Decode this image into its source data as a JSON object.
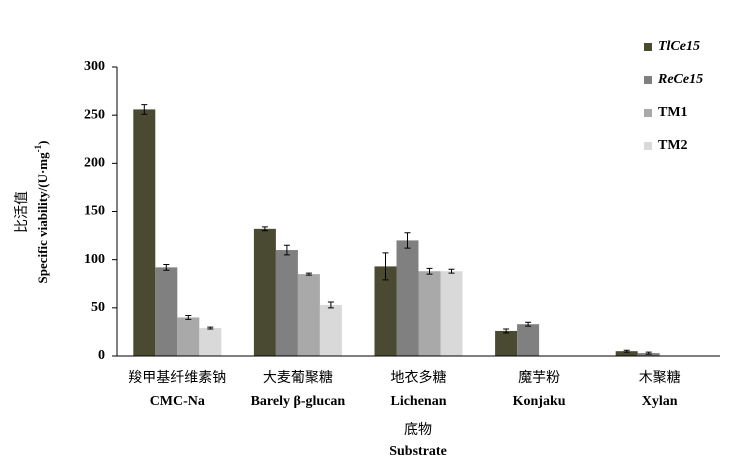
{
  "chart_data": {
    "type": "bar",
    "categories": [
      [
        "羧甲基纤维素钠",
        "CMC-Na"
      ],
      [
        "大麦葡聚糖",
        "Barely β-glucan"
      ],
      [
        "地衣多糖",
        "Lichenan"
      ],
      [
        "魔芋粉",
        "Konjaku"
      ],
      [
        "木聚糖",
        "Xylan"
      ]
    ],
    "x_label": [
      "底物",
      "Substrate"
    ],
    "y_label_cn": "比活值",
    "y_label": [
      "Specific viability/(U·mg",
      "-1",
      ")"
    ],
    "series": [
      {
        "name": "TlCe15",
        "color": "#4a4a32",
        "italic": true,
        "values": [
          256,
          132,
          93,
          26,
          5
        ],
        "errors": [
          5,
          2,
          14,
          2,
          1
        ]
      },
      {
        "name": "ReCe15",
        "color": "#808080",
        "italic": true,
        "values": [
          92,
          110,
          120,
          33,
          3
        ],
        "errors": [
          3,
          5,
          8,
          2,
          1
        ]
      },
      {
        "name": "TM1",
        "color": "#a9a9a9",
        "italic": false,
        "values": [
          40,
          85,
          88,
          null,
          null
        ],
        "errors": [
          2,
          1,
          3,
          null,
          null
        ]
      },
      {
        "name": "TM2",
        "color": "#d9d9d9",
        "italic": false,
        "values": [
          29,
          53,
          88,
          null,
          null
        ],
        "errors": [
          1,
          3,
          2,
          null,
          null
        ]
      }
    ],
    "ylim": [
      0,
      300
    ],
    "yticks": [
      0,
      50,
      100,
      150,
      200,
      250,
      300
    ],
    "legend": "right"
  }
}
